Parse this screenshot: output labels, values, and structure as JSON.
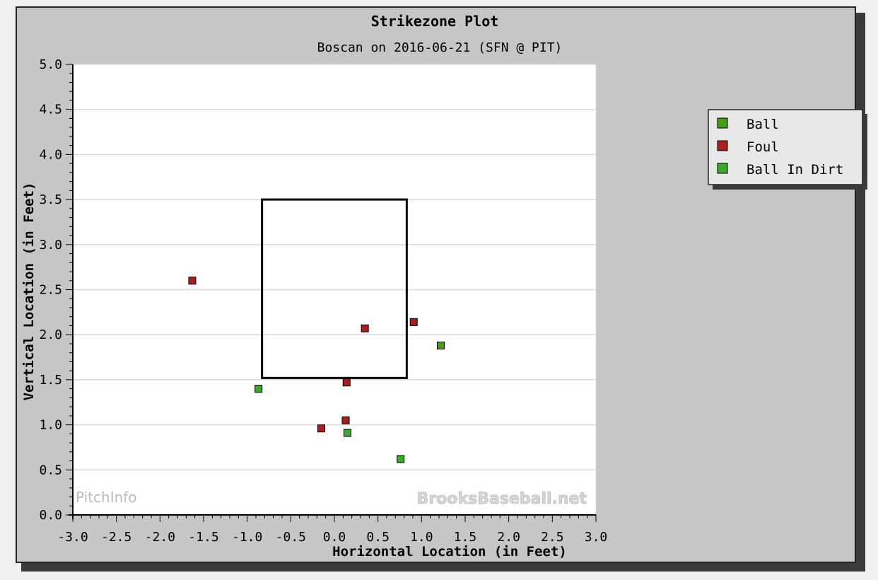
{
  "chart_data": {
    "type": "scatter",
    "title": "Strikezone Plot",
    "subtitle": "Boscan on 2016-06-21 (SFN @ PIT)",
    "xlabel": "Horizontal Location (in Feet)",
    "ylabel": "Vertical Location (in Feet)",
    "xlim": [
      -3.0,
      3.0
    ],
    "ylim": [
      0.0,
      5.0
    ],
    "x_ticks": [
      "-3.0",
      "-2.5",
      "-2.0",
      "-1.5",
      "-1.0",
      "-0.5",
      "0.0",
      "0.5",
      "1.0",
      "1.5",
      "2.0",
      "2.5",
      "3.0"
    ],
    "y_ticks": [
      "0.0",
      "0.5",
      "1.0",
      "1.5",
      "2.0",
      "2.5",
      "3.0",
      "3.5",
      "4.0",
      "4.5",
      "5.0"
    ],
    "grid": "horizontal",
    "legend_position": "right",
    "strike_zone": {
      "x": [
        -0.83,
        0.83
      ],
      "y": [
        1.52,
        3.5
      ]
    },
    "series": [
      {
        "name": "Ball",
        "color": "#4a9a1a",
        "points": [
          [
            1.22,
            1.88
          ]
        ]
      },
      {
        "name": "Foul",
        "color": "#a52020",
        "points": [
          [
            -1.63,
            2.6
          ],
          [
            0.35,
            2.07
          ],
          [
            0.91,
            2.14
          ],
          [
            0.14,
            1.47
          ],
          [
            0.13,
            1.05
          ],
          [
            -0.15,
            0.96
          ]
        ]
      },
      {
        "name": "Ball In Dirt",
        "color": "#3aa82a",
        "points": [
          [
            -0.87,
            1.4
          ],
          [
            0.15,
            0.91
          ],
          [
            0.76,
            0.62
          ]
        ]
      }
    ],
    "watermarks": [
      "PitchInfo",
      "BrooksBaseball.net"
    ]
  }
}
